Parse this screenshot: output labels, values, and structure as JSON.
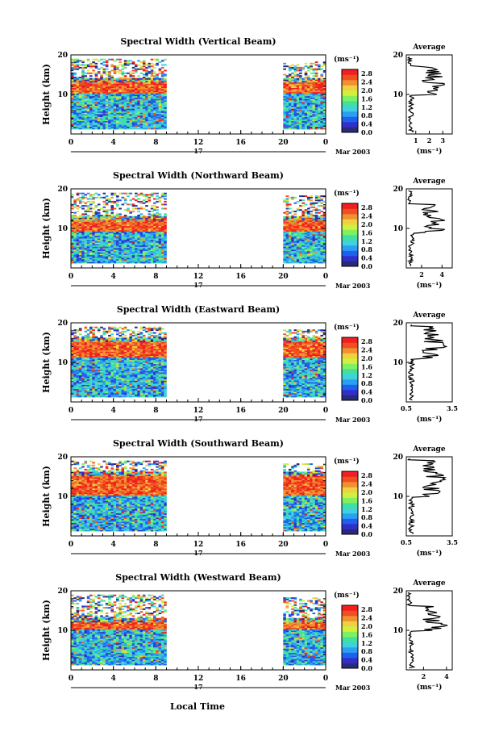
{
  "figure": {
    "xlabel": "Local Time",
    "date_label": "Mar 2003",
    "day_label": "17",
    "colorbar_unit": "(ms⁻¹)",
    "ylabel": "Height (km)",
    "avg_title": "Average",
    "avg_xlabel": "(ms⁻¹)"
  },
  "chart_data": [
    {
      "type": "heatmap",
      "title": "Spectral Width (Vertical Beam)",
      "ylabel": "Height (km)",
      "xlabel": "Local Time",
      "x_ticks": [
        "0",
        "4",
        "8",
        "12",
        "16",
        "20",
        "0"
      ],
      "y_ticks": [
        "10",
        "20"
      ],
      "xlim": [
        0,
        24
      ],
      "ylim": [
        0,
        20
      ],
      "colorbar": {
        "unit": "(ms⁻¹)",
        "ticks": [
          "2.8",
          "2.4",
          "2.0",
          "1.6",
          "1.2",
          "0.8",
          "0.4",
          "0.0"
        ],
        "range": [
          0,
          3.0
        ]
      },
      "data_time_ranges": [
        [
          0,
          9
        ],
        [
          20,
          24
        ]
      ],
      "high_width_band_km": [
        10,
        13
      ],
      "average_profile": {
        "title": "Average",
        "xlabel": "(ms⁻¹)",
        "x_ticks": [
          "1",
          "2",
          "3"
        ],
        "xlim": [
          0.3,
          3.7
        ],
        "y_ticks": [
          "10",
          "20"
        ],
        "peak_height_km": 13
      }
    },
    {
      "type": "heatmap",
      "title": "Spectral Width (Northward Beam)",
      "ylabel": "Height (km)",
      "xlabel": "Local Time",
      "x_ticks": [
        "0",
        "4",
        "8",
        "12",
        "16",
        "20",
        "0"
      ],
      "y_ticks": [
        "10",
        "20"
      ],
      "xlim": [
        0,
        24
      ],
      "ylim": [
        0,
        20
      ],
      "colorbar": {
        "unit": "(ms⁻¹)",
        "ticks": [
          "2.8",
          "2.4",
          "2.0",
          "1.6",
          "1.2",
          "0.8",
          "0.4",
          "0.0"
        ],
        "range": [
          0,
          3.0
        ]
      },
      "data_time_ranges": [
        [
          0,
          9
        ],
        [
          20,
          24
        ]
      ],
      "high_width_band_km": [
        9,
        12
      ],
      "average_profile": {
        "title": "Average",
        "xlabel": "(ms⁻¹)",
        "x_ticks": [
          "2",
          "4"
        ],
        "xlim": [
          0.5,
          5
        ],
        "y_ticks": [
          "10",
          "20"
        ],
        "peak_height_km": 11
      }
    },
    {
      "type": "heatmap",
      "title": "Spectral Width (Eastward Beam)",
      "ylabel": "Height (km)",
      "xlabel": "Local Time",
      "x_ticks": [
        "0",
        "4",
        "8",
        "12",
        "16",
        "20",
        "0"
      ],
      "y_ticks": [
        "10",
        "20"
      ],
      "xlim": [
        0,
        24
      ],
      "ylim": [
        0,
        20
      ],
      "colorbar": {
        "unit": "(ms⁻¹)",
        "ticks": [
          "2.8",
          "2.4",
          "2.0",
          "1.6",
          "1.2",
          "0.8",
          "0.4",
          "0.0"
        ],
        "range": [
          0,
          3.0
        ]
      },
      "data_time_ranges": [
        [
          0,
          9
        ],
        [
          20,
          24
        ]
      ],
      "high_width_band_km": [
        11,
        15
      ],
      "average_profile": {
        "title": "Average",
        "xlabel": "(ms⁻¹)",
        "x_ticks": [
          "0.5",
          "3.5"
        ],
        "xlim": [
          0.5,
          3.5
        ],
        "y_ticks": [
          "10",
          "20"
        ],
        "peak_height_km": 14
      }
    },
    {
      "type": "heatmap",
      "title": "Spectral Width (Southward Beam)",
      "ylabel": "Height (km)",
      "xlabel": "Local Time",
      "x_ticks": [
        "0",
        "4",
        "8",
        "12",
        "16",
        "20",
        "0"
      ],
      "y_ticks": [
        "10",
        "20"
      ],
      "xlim": [
        0,
        24
      ],
      "ylim": [
        0,
        20
      ],
      "colorbar": {
        "unit": "(ms⁻¹)",
        "ticks": [
          "2.8",
          "2.4",
          "2.0",
          "1.6",
          "1.2",
          "0.8",
          "0.4",
          "0.0"
        ],
        "range": [
          0,
          3.0
        ]
      },
      "data_time_ranges": [
        [
          0,
          9
        ],
        [
          20,
          24
        ]
      ],
      "high_width_band_km": [
        10,
        15
      ],
      "average_profile": {
        "title": "Average",
        "xlabel": "(ms⁻¹)",
        "x_ticks": [
          "0.5",
          "3.5"
        ],
        "xlim": [
          0.5,
          3.5
        ],
        "y_ticks": [
          "10",
          "20"
        ],
        "peak_height_km": 14
      }
    },
    {
      "type": "heatmap",
      "title": "Spectral Width (Westward Beam)",
      "ylabel": "Height (km)",
      "xlabel": "Local Time",
      "x_ticks": [
        "0",
        "4",
        "8",
        "12",
        "16",
        "20",
        "0"
      ],
      "y_ticks": [
        "10",
        "20"
      ],
      "xlim": [
        0,
        24
      ],
      "ylim": [
        0,
        20
      ],
      "colorbar": {
        "unit": "(ms⁻¹)",
        "ticks": [
          "2.8",
          "2.4",
          "2.0",
          "1.6",
          "1.2",
          "0.8",
          "0.4",
          "0.0"
        ],
        "range": [
          0,
          3.0
        ]
      },
      "data_time_ranges": [
        [
          0,
          9
        ],
        [
          20,
          24
        ]
      ],
      "high_width_band_km": [
        10,
        12
      ],
      "average_profile": {
        "title": "Average",
        "xlabel": "(ms⁻¹)",
        "x_ticks": [
          "2",
          "4"
        ],
        "xlim": [
          0.5,
          4.5
        ],
        "y_ticks": [
          "10",
          "20"
        ],
        "peak_height_km": 11
      }
    }
  ]
}
